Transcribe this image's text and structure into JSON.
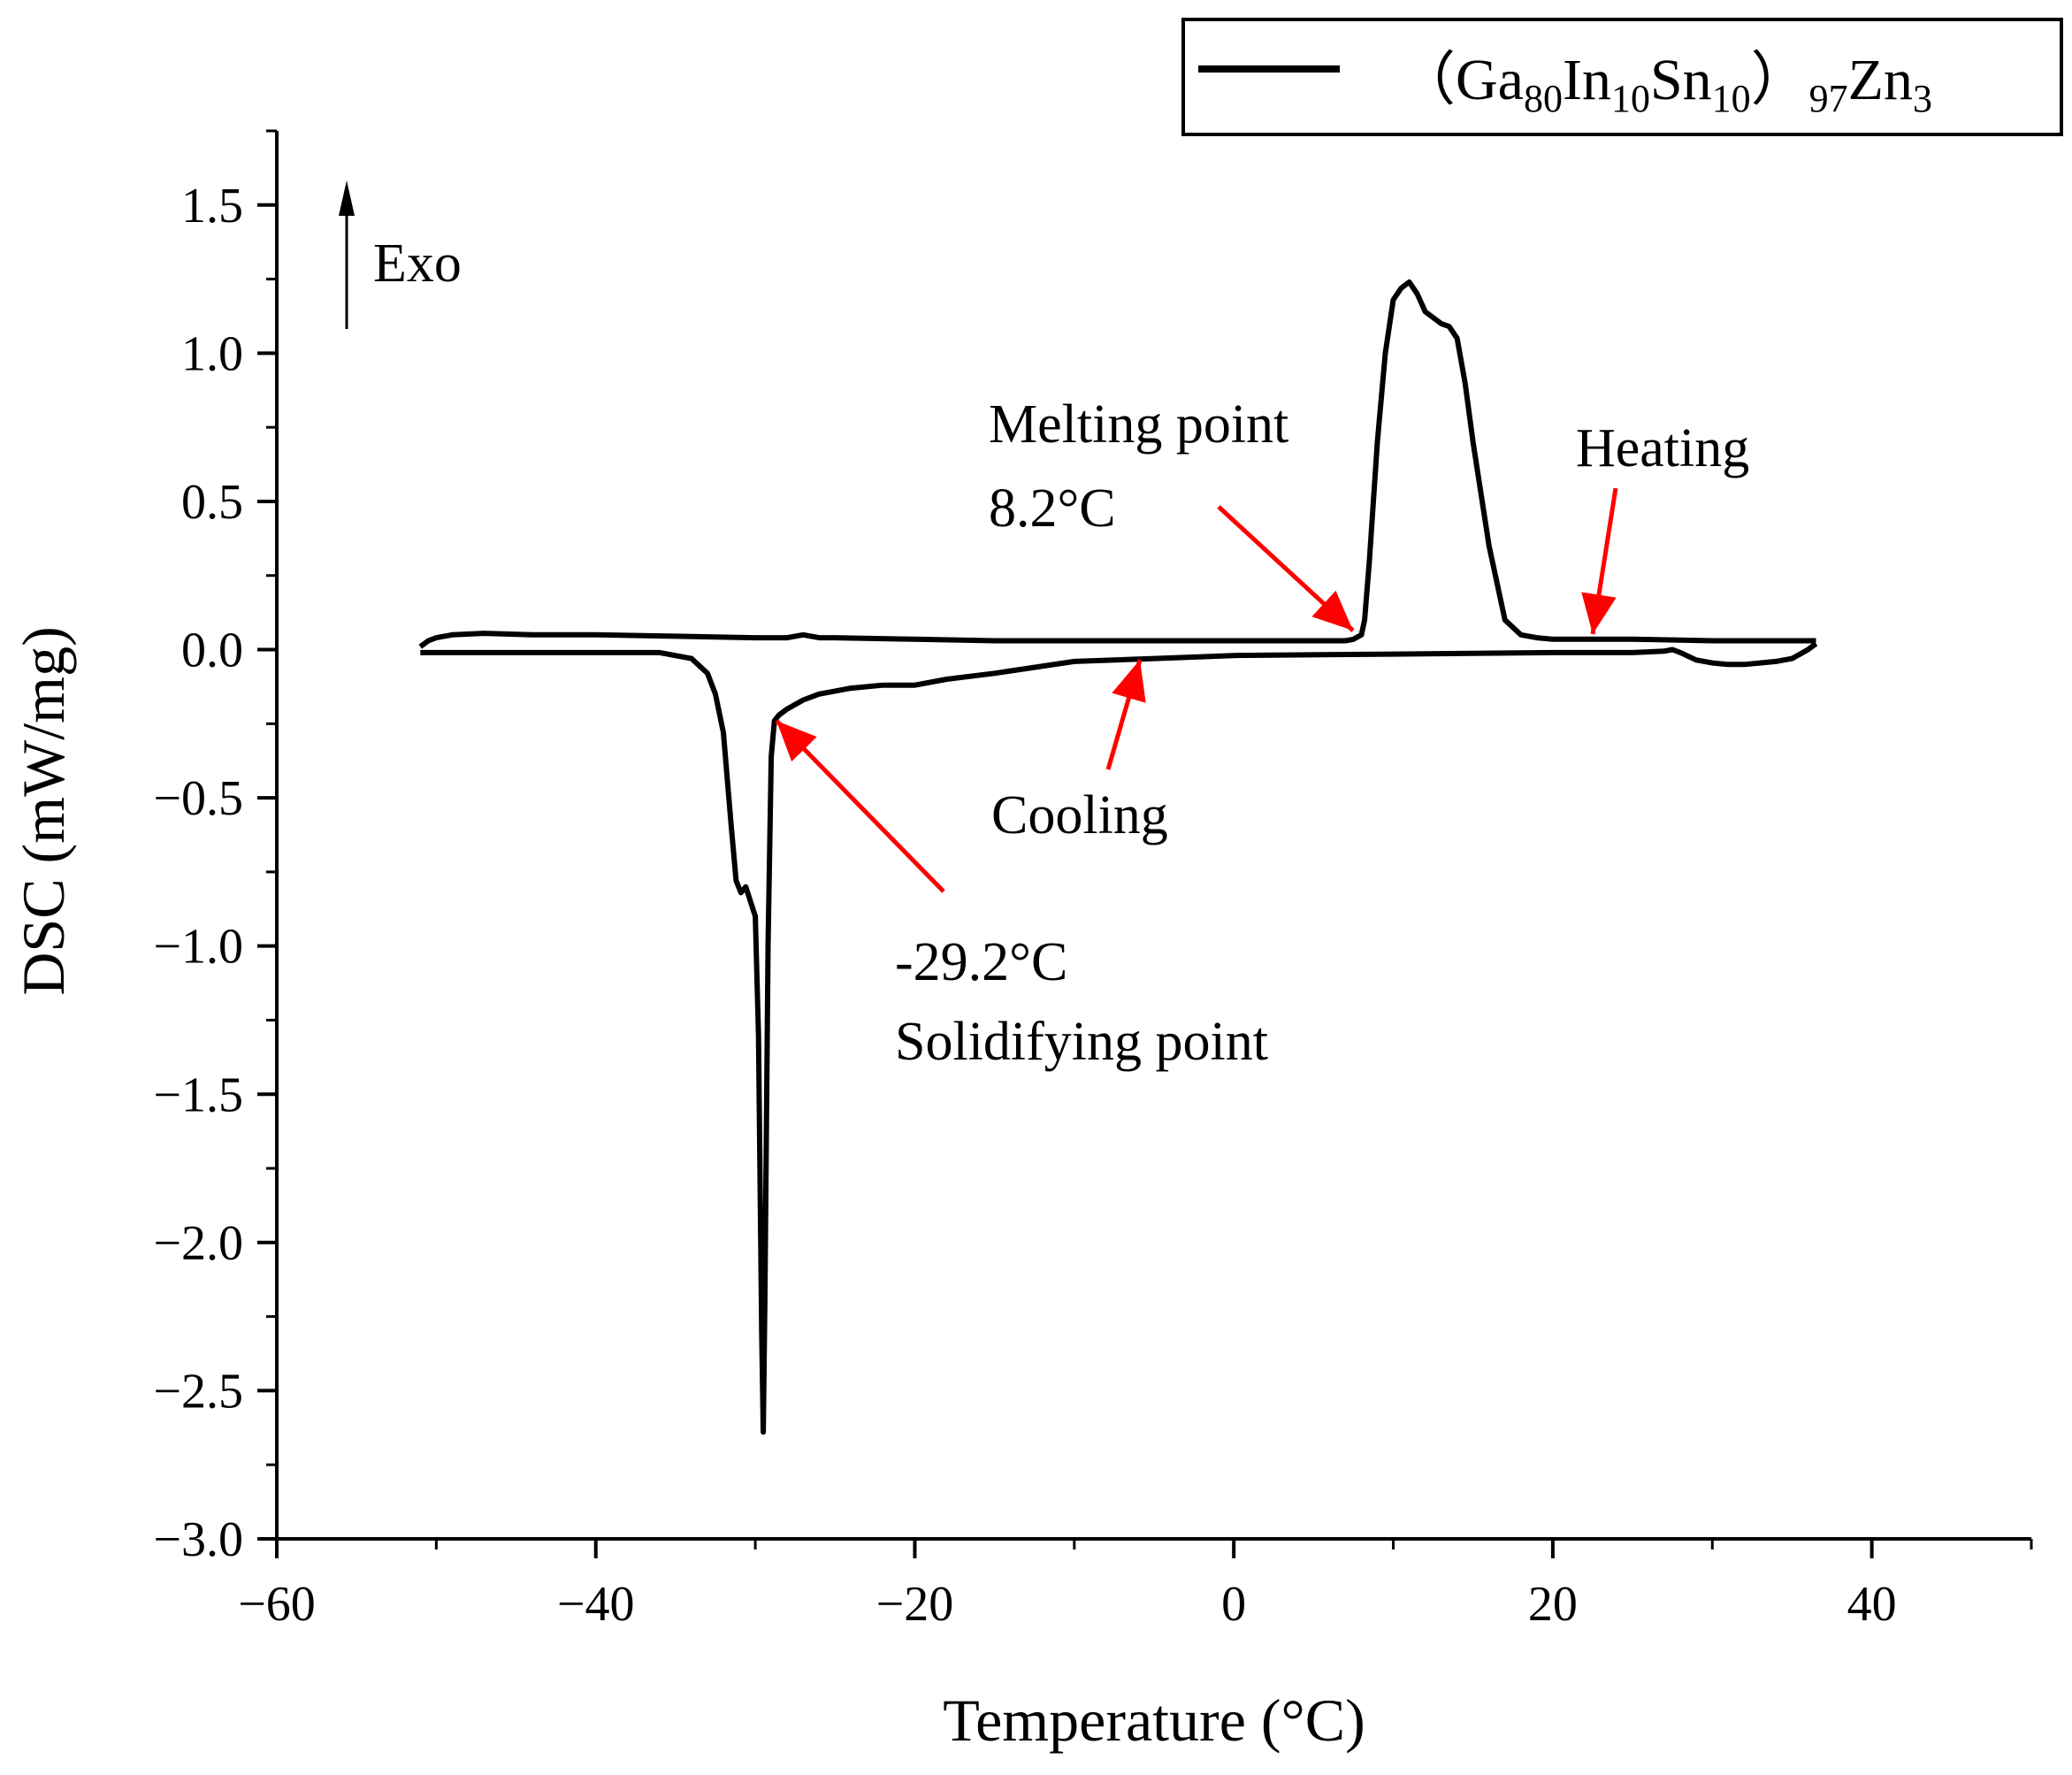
{
  "chart_data": {
    "type": "line",
    "xlabel": "Temperature (°C)",
    "ylabel": "DSC (mW/mg)",
    "xlim": [
      -60,
      50
    ],
    "ylim": [
      -3.0,
      1.75
    ],
    "x_ticks": [
      -60,
      -40,
      -20,
      0,
      20,
      40
    ],
    "x_tick_labels": [
      "−60",
      "−40",
      "−20",
      "0",
      "20",
      "40"
    ],
    "y_ticks": [
      1.5,
      1.0,
      0.5,
      0.0,
      -0.5,
      -1.0,
      -1.5,
      -2.0,
      -2.5,
      -3.0
    ],
    "y_tick_labels": [
      "1.5",
      "1.0",
      "0.5",
      "0.0",
      "−0.5",
      "−1.0",
      "−1.5",
      "−2.0",
      "−2.5",
      "−3.0"
    ],
    "legend": {
      "position": "top-right",
      "prefix": "（Ga",
      "sub1": "80",
      "part2": "In",
      "sub2": "10",
      "part3": "Sn",
      "sub3": "10",
      "part4": "）",
      "sub4": "97",
      "part5": "Zn",
      "sub5": "3"
    },
    "exo_label": "Exo",
    "series": [
      {
        "name": "Heating",
        "color": "#000000",
        "x": [
          -51,
          -50.5,
          -50,
          -49,
          -47,
          -44,
          -40,
          -35,
          -30,
          -28,
          -27,
          -26,
          -25,
          -20,
          -15,
          -10,
          -5,
          0,
          5,
          7,
          7.5,
          8,
          8.2,
          8.5,
          9,
          9.5,
          10,
          10.5,
          11,
          11.5,
          12,
          12.5,
          13,
          13.5,
          14,
          14.5,
          15,
          16,
          17,
          18,
          19,
          20,
          25,
          30,
          35,
          36.5
        ],
        "y": [
          0.01,
          0.03,
          0.04,
          0.05,
          0.055,
          0.05,
          0.05,
          0.045,
          0.04,
          0.04,
          0.05,
          0.04,
          0.04,
          0.035,
          0.03,
          0.03,
          0.03,
          0.03,
          0.03,
          0.03,
          0.035,
          0.05,
          0.1,
          0.3,
          0.7,
          1.0,
          1.18,
          1.22,
          1.24,
          1.2,
          1.14,
          1.12,
          1.1,
          1.09,
          1.05,
          0.9,
          0.7,
          0.35,
          0.1,
          0.05,
          0.04,
          0.035,
          0.035,
          0.03,
          0.03,
          0.03
        ]
      },
      {
        "name": "Cooling",
        "color": "#000000",
        "x": [
          36.5,
          36,
          35,
          34,
          33,
          32,
          31,
          30,
          29,
          28,
          27.5,
          27,
          25,
          20,
          10,
          0,
          -5,
          -10,
          -15,
          -18,
          -20,
          -22,
          -24,
          -26,
          -27,
          -28,
          -28.5,
          -28.8,
          -29.0,
          -29.2,
          -29.4,
          -29.5,
          -29.6,
          -29.8,
          -30.0,
          -30.3,
          -30.6,
          -30.9,
          -31.2,
          -31.5,
          -32,
          -32.5,
          -33,
          -34,
          -36,
          -40,
          -45,
          -50,
          -51
        ],
        "y": [
          0.02,
          0.0,
          -0.03,
          -0.04,
          -0.045,
          -0.05,
          -0.05,
          -0.045,
          -0.035,
          -0.01,
          0.0,
          -0.005,
          -0.01,
          -0.01,
          -0.015,
          -0.02,
          -0.03,
          -0.04,
          -0.08,
          -0.1,
          -0.12,
          -0.12,
          -0.13,
          -0.15,
          -0.17,
          -0.2,
          -0.22,
          -0.24,
          -0.36,
          -1.0,
          -2.2,
          -2.64,
          -2.3,
          -1.3,
          -0.9,
          -0.85,
          -0.8,
          -0.82,
          -0.78,
          -0.6,
          -0.28,
          -0.15,
          -0.08,
          -0.03,
          -0.01,
          -0.01,
          -0.01,
          -0.01,
          -0.01
        ]
      }
    ],
    "annotations": [
      {
        "id": "melting",
        "line1": "Melting point",
        "line2": "8.2°C",
        "target": [
          8.2,
          0.03
        ]
      },
      {
        "id": "solidifying",
        "line1": "-29.2°C",
        "line2": "Solidifying point",
        "target": [
          -29.0,
          -0.24
        ]
      },
      {
        "id": "heating",
        "text": "Heating",
        "target": [
          22.5,
          0.04
        ]
      },
      {
        "id": "cooling",
        "text": "Cooling",
        "target": [
          -5.5,
          -0.03
        ]
      }
    ],
    "arrow_color": "#ff0000"
  }
}
